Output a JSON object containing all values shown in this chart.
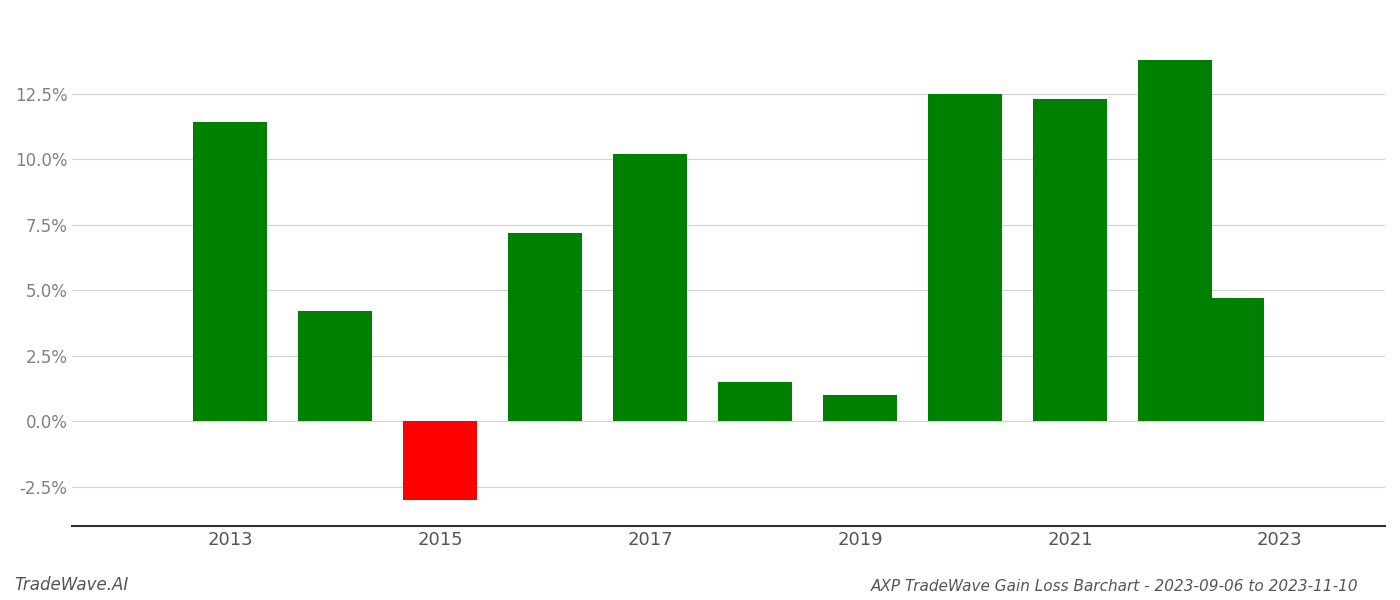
{
  "years": [
    2013,
    2014,
    2015,
    2016,
    2017,
    2018,
    2019,
    2020,
    2021,
    2022
  ],
  "values": [
    0.114,
    0.042,
    -0.03,
    0.072,
    0.102,
    0.015,
    0.01,
    0.125,
    0.123,
    0.138
  ],
  "last_bar_year": 2022.5,
  "last_bar_value": 0.047,
  "bar_colors_pos": "#008000",
  "bar_colors_neg": "#ff0000",
  "background_color": "#ffffff",
  "ylabel_color": "#808080",
  "grid_color": "#d3d3d3",
  "title_text": "AXP TradeWave Gain Loss Barchart - 2023-09-06 to 2023-11-10",
  "watermark_text": "TradeWave.AI",
  "xlim": [
    2011.5,
    2024.0
  ],
  "ylim": [
    -0.04,
    0.155
  ],
  "yticks": [
    -0.025,
    0.0,
    0.025,
    0.05,
    0.075,
    0.1,
    0.125
  ],
  "xticks": [
    2013,
    2015,
    2017,
    2019,
    2021,
    2023
  ],
  "bar_width": 0.7
}
